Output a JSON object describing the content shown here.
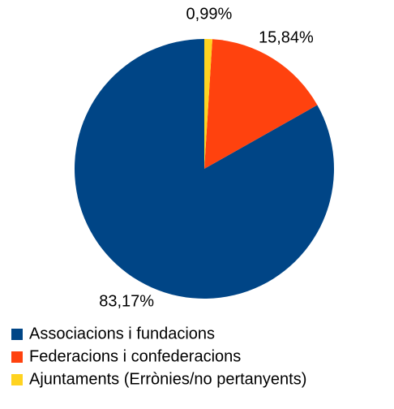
{
  "chart_data": {
    "type": "pie",
    "categories": [
      "Associacions i fundacions",
      "Federacions i confederacions",
      "Ajuntaments (Errònies/no pertanyents)"
    ],
    "values": [
      83.17,
      15.84,
      0.99
    ],
    "value_labels": [
      "83,17%",
      "15,84%",
      "0,99%"
    ],
    "colors": [
      "#004586",
      "#ff420e",
      "#ffd320"
    ],
    "legend": "bottom"
  }
}
